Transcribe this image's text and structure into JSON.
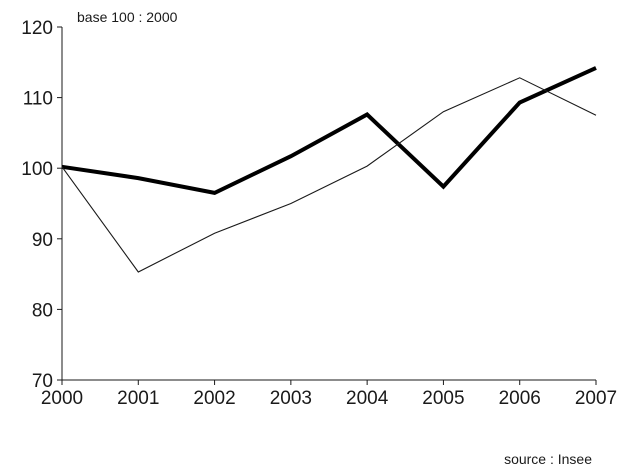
{
  "chart_data": {
    "type": "line",
    "subtitle": "base 100 : 2000",
    "source": "source : Insee",
    "x": [
      "2000",
      "2001",
      "2002",
      "2003",
      "2004",
      "2005",
      "2006",
      "2007"
    ],
    "xlabel": "",
    "ylabel": "",
    "ylim": [
      70,
      120
    ],
    "yticks": [
      "70",
      "80",
      "90",
      "100",
      "110",
      "120"
    ],
    "grid": false,
    "series": [
      {
        "values": [
          100.2,
          98.6,
          96.5,
          101.7,
          107.6,
          97.4,
          109.3,
          114.2
        ],
        "color": "#000000",
        "weight": "bold"
      },
      {
        "values": [
          100.2,
          85.3,
          90.8,
          95.0,
          100.3,
          108.0,
          112.8,
          107.5
        ],
        "color": "#1a1a1a",
        "weight": "thin"
      }
    ]
  }
}
